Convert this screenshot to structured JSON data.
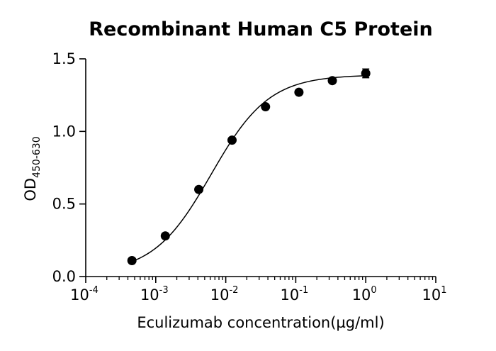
{
  "chart_data": {
    "type": "scatter",
    "title": "Recombinant Human C5 Protein",
    "xlabel": "Eculizumab concentration(µg/ml)",
    "ylabel": {
      "main": "OD",
      "subscript": "450-630"
    },
    "xscale": "log",
    "xlim": [
      0.0001,
      10
    ],
    "ylim": [
      0,
      1.5
    ],
    "xticks": [
      {
        "base": "10",
        "exp": "-4"
      },
      {
        "base": "10",
        "exp": "-3"
      },
      {
        "base": "10",
        "exp": "-2"
      },
      {
        "base": "10",
        "exp": "-1"
      },
      {
        "base": "10",
        "exp": "0"
      },
      {
        "base": "10",
        "exp": "1"
      }
    ],
    "yticks": [
      "0.0",
      "0.5",
      "1.0",
      "1.5"
    ],
    "grid": false,
    "series": [
      {
        "x": [
          0.000457,
          0.00137,
          0.00412,
          0.0123,
          0.037,
          0.111,
          0.333,
          1.0
        ],
        "y": [
          0.11,
          0.28,
          0.6,
          0.94,
          1.17,
          1.27,
          1.35,
          1.4
        ],
        "yerr": [
          0.01,
          0.01,
          0.01,
          0.01,
          0.01,
          0.01,
          0.01,
          0.03
        ],
        "fit": "four-parameter-logistic"
      }
    ],
    "colors": {
      "marker": "#000000",
      "line": "#000000"
    }
  }
}
